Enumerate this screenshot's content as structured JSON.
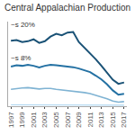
{
  "chart_data": {
    "type": "line",
    "title": "Central Appalachian Production",
    "x": [
      1997,
      1998,
      1999,
      2000,
      2001,
      2002,
      2003,
      2004,
      2005,
      2006,
      2007,
      2008,
      2009,
      2010,
      2011,
      2012,
      2013,
      2014,
      2015,
      2016,
      2017
    ],
    "series": [
      {
        "color": "#1a5276",
        "values": [
          240,
          242,
          235,
          238,
          245,
          232,
          238,
          255,
          265,
          260,
          270,
          272,
          235,
          215,
          192,
          172,
          148,
          122,
          97,
          82,
          87
        ]
      },
      {
        "color": "#2471a3",
        "values": [
          145,
          150,
          148,
          152,
          148,
          142,
          148,
          152,
          150,
          148,
          145,
          143,
          138,
          132,
          125,
          112,
          98,
          80,
          58,
          42,
          45
        ]
      },
      {
        "color": "#7fb3d3",
        "values": [
          62,
          65,
          67,
          68,
          66,
          63,
          65,
          65,
          62,
          60,
          58,
          56,
          53,
          50,
          46,
          40,
          33,
          27,
          19,
          15,
          17
        ]
      },
      {
        "color": "#aed6f1",
        "values": [
          5,
          5,
          5,
          5,
          5,
          5,
          5,
          5,
          5,
          5,
          5,
          5,
          5,
          5,
          5,
          5,
          5,
          4,
          4,
          4,
          4
        ]
      }
    ],
    "xlim": [
      1996.5,
      2017.5
    ],
    "xticks": [
      1997,
      1999,
      2001,
      2003,
      2005,
      2007,
      2009,
      2011,
      2013,
      2015,
      2017
    ],
    "ylim": [
      0,
      310
    ],
    "yticks": [],
    "tick_labels": "x",
    "grid": false,
    "annotations": [
      "~s 20%",
      "~s 8%"
    ]
  }
}
